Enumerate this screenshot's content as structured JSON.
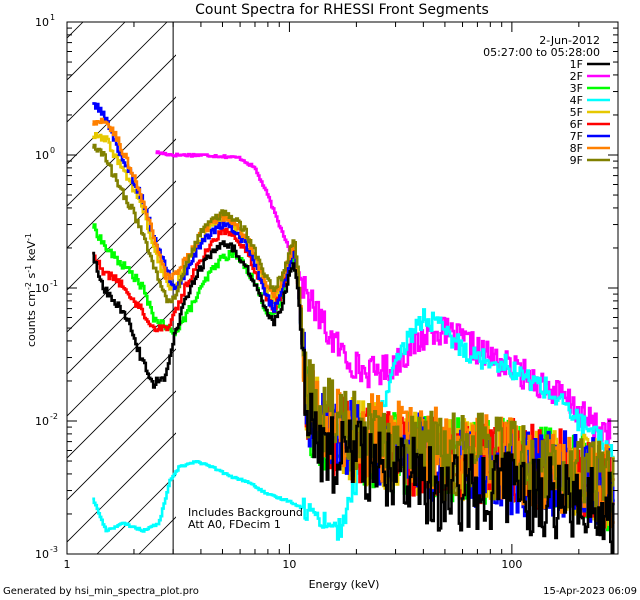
{
  "chart_data": {
    "type": "line",
    "title": "Count Spectra for RHESSI Front Segments",
    "xlabel": "Energy (keV)",
    "ylabel_parts": [
      "counts cm",
      "-2",
      " s",
      "-1",
      " keV",
      "-1"
    ],
    "x_scale": "log",
    "y_scale": "log",
    "xlim": [
      1,
      300
    ],
    "ylim": [
      0.001,
      10
    ],
    "x_ticks": [
      {
        "value": 1,
        "label": "1"
      },
      {
        "value": 10,
        "label": "10"
      },
      {
        "value": 100,
        "label": "100"
      }
    ],
    "y_ticks": [
      {
        "value": 10,
        "label": "10",
        "exp": "1"
      },
      {
        "value": 1,
        "label": "10",
        "exp": "0"
      },
      {
        "value": 0.1,
        "label": "10",
        "exp": "-1"
      },
      {
        "value": 0.01,
        "label": "10",
        "exp": "-2"
      },
      {
        "value": 0.001,
        "label": "10",
        "exp": "-3"
      }
    ],
    "shaded_region": {
      "x_from": 1,
      "x_to": 3,
      "style": "hatched"
    },
    "date_text": "2-Jun-2012",
    "time_range_text": "05:27:00 to 05:28:00",
    "legend_position": "top-right",
    "annotations": [
      "Includes Background",
      "Att A0, FDecim 1"
    ],
    "series": [
      {
        "name": "1F",
        "color": "#000000",
        "noise": 1.0,
        "points": [
          [
            1.3,
            0.19
          ],
          [
            1.45,
            0.1
          ],
          [
            1.65,
            0.08
          ],
          [
            1.9,
            0.055
          ],
          [
            2.15,
            0.03
          ],
          [
            2.45,
            0.019
          ],
          [
            2.8,
            0.022
          ],
          [
            3.0,
            0.04
          ],
          [
            3.4,
            0.08
          ],
          [
            3.9,
            0.13
          ],
          [
            4.4,
            0.18
          ],
          [
            5.0,
            0.22
          ],
          [
            5.6,
            0.2
          ],
          [
            6.3,
            0.15
          ],
          [
            7.0,
            0.11
          ],
          [
            7.8,
            0.07
          ],
          [
            8.5,
            0.055
          ],
          [
            9.2,
            0.07
          ],
          [
            10.0,
            0.12
          ],
          [
            10.5,
            0.16
          ],
          [
            11.0,
            0.09
          ],
          [
            12.0,
            0.01
          ],
          [
            15.0,
            0.006
          ],
          [
            20.0,
            0.005
          ],
          [
            30.0,
            0.004
          ],
          [
            50.0,
            0.003
          ],
          [
            100.0,
            0.003
          ],
          [
            200.0,
            0.0025
          ],
          [
            290.0,
            0.002
          ]
        ]
      },
      {
        "name": "2F",
        "color": "#ff00ff",
        "noise": 0.35,
        "points": [
          [
            2.5,
            1.05
          ],
          [
            3.0,
            1.0
          ],
          [
            4.0,
            1.0
          ],
          [
            5.0,
            0.98
          ],
          [
            6.0,
            0.95
          ],
          [
            7.0,
            0.8
          ],
          [
            8.0,
            0.5
          ],
          [
            9.0,
            0.3
          ],
          [
            10.0,
            0.2
          ],
          [
            11.0,
            0.13
          ],
          [
            12.0,
            0.09
          ],
          [
            15.0,
            0.045
          ],
          [
            18.0,
            0.03
          ],
          [
            22.0,
            0.023
          ],
          [
            28.0,
            0.025
          ],
          [
            35.0,
            0.035
          ],
          [
            45.0,
            0.05
          ],
          [
            60.0,
            0.04
          ],
          [
            80.0,
            0.03
          ],
          [
            100.0,
            0.025
          ],
          [
            130.0,
            0.02
          ],
          [
            170.0,
            0.015
          ],
          [
            220.0,
            0.01
          ],
          [
            280.0,
            0.008
          ]
        ]
      },
      {
        "name": "3F",
        "color": "#00ff00",
        "noise": 1.0,
        "points": [
          [
            1.3,
            0.3
          ],
          [
            1.5,
            0.2
          ],
          [
            1.7,
            0.16
          ],
          [
            1.95,
            0.13
          ],
          [
            2.2,
            0.1
          ],
          [
            2.45,
            0.06
          ],
          [
            2.8,
            0.05
          ],
          [
            3.0,
            0.045
          ],
          [
            3.4,
            0.06
          ],
          [
            3.9,
            0.09
          ],
          [
            4.4,
            0.13
          ],
          [
            5.0,
            0.17
          ],
          [
            5.6,
            0.18
          ],
          [
            6.3,
            0.15
          ],
          [
            7.0,
            0.11
          ],
          [
            7.8,
            0.07
          ],
          [
            8.5,
            0.06
          ],
          [
            9.2,
            0.08
          ],
          [
            10.0,
            0.14
          ],
          [
            10.5,
            0.19
          ],
          [
            11.0,
            0.1
          ],
          [
            12.0,
            0.012
          ],
          [
            15.0,
            0.008
          ],
          [
            20.0,
            0.007
          ],
          [
            30.0,
            0.006
          ],
          [
            50.0,
            0.005
          ],
          [
            100.0,
            0.005
          ],
          [
            200.0,
            0.004
          ],
          [
            290.0,
            0.003
          ]
        ]
      },
      {
        "name": "4F",
        "color": "#00ffff",
        "noise": 0.25,
        "points": [
          [
            1.3,
            0.0027
          ],
          [
            1.5,
            0.0015
          ],
          [
            1.8,
            0.0017
          ],
          [
            2.2,
            0.0015
          ],
          [
            2.6,
            0.0017
          ],
          [
            2.9,
            0.0035
          ],
          [
            3.2,
            0.0045
          ],
          [
            3.8,
            0.005
          ],
          [
            4.5,
            0.0045
          ],
          [
            5.5,
            0.0038
          ],
          [
            6.5,
            0.0035
          ],
          [
            8.0,
            0.0028
          ],
          [
            10.0,
            0.0025
          ],
          [
            13.0,
            0.002
          ],
          [
            17.0,
            0.0015
          ],
          [
            20.0,
            0.0035
          ],
          [
            25.0,
            0.01
          ],
          [
            30.0,
            0.025
          ],
          [
            35.0,
            0.045
          ],
          [
            40.0,
            0.06
          ],
          [
            45.0,
            0.055
          ],
          [
            55.0,
            0.04
          ],
          [
            70.0,
            0.03
          ],
          [
            90.0,
            0.028
          ],
          [
            110.0,
            0.022
          ],
          [
            140.0,
            0.018
          ],
          [
            180.0,
            0.012
          ],
          [
            230.0,
            0.008
          ],
          [
            290.0,
            0.006
          ]
        ]
      },
      {
        "name": "5F",
        "color": "#e6c800",
        "noise": 1.0,
        "points": [
          [
            1.3,
            1.4
          ],
          [
            1.5,
            1.3
          ],
          [
            1.7,
            0.9
          ],
          [
            1.95,
            0.6
          ],
          [
            2.2,
            0.4
          ],
          [
            2.45,
            0.2
          ],
          [
            2.8,
            0.11
          ],
          [
            3.0,
            0.1
          ],
          [
            3.4,
            0.14
          ],
          [
            3.9,
            0.22
          ],
          [
            4.4,
            0.28
          ],
          [
            5.0,
            0.32
          ],
          [
            5.6,
            0.3
          ],
          [
            6.3,
            0.24
          ],
          [
            7.0,
            0.17
          ],
          [
            7.8,
            0.1
          ],
          [
            8.5,
            0.08
          ],
          [
            9.2,
            0.1
          ],
          [
            10.0,
            0.16
          ],
          [
            10.5,
            0.22
          ],
          [
            11.0,
            0.11
          ],
          [
            12.0,
            0.014
          ],
          [
            15.0,
            0.009
          ],
          [
            20.0,
            0.007
          ],
          [
            30.0,
            0.006
          ],
          [
            50.0,
            0.005
          ],
          [
            100.0,
            0.005
          ],
          [
            200.0,
            0.004
          ],
          [
            290.0,
            0.003
          ]
        ]
      },
      {
        "name": "6F",
        "color": "#ff0000",
        "noise": 1.0,
        "points": [
          [
            1.3,
            0.19
          ],
          [
            1.45,
            0.13
          ],
          [
            1.65,
            0.12
          ],
          [
            1.9,
            0.09
          ],
          [
            2.15,
            0.07
          ],
          [
            2.45,
            0.05
          ],
          [
            2.8,
            0.05
          ],
          [
            3.0,
            0.06
          ],
          [
            3.4,
            0.1
          ],
          [
            3.9,
            0.15
          ],
          [
            4.4,
            0.21
          ],
          [
            5.0,
            0.27
          ],
          [
            5.6,
            0.26
          ],
          [
            6.3,
            0.2
          ],
          [
            7.0,
            0.14
          ],
          [
            7.8,
            0.09
          ],
          [
            8.5,
            0.07
          ],
          [
            9.2,
            0.09
          ],
          [
            10.0,
            0.15
          ],
          [
            10.5,
            0.2
          ],
          [
            11.0,
            0.1
          ],
          [
            12.0,
            0.013
          ],
          [
            15.0,
            0.008
          ],
          [
            20.0,
            0.007
          ],
          [
            30.0,
            0.006
          ],
          [
            50.0,
            0.005
          ],
          [
            100.0,
            0.005
          ],
          [
            200.0,
            0.004
          ],
          [
            290.0,
            0.003
          ]
        ]
      },
      {
        "name": "7F",
        "color": "#0000ff",
        "noise": 1.0,
        "points": [
          [
            1.3,
            2.5
          ],
          [
            1.5,
            1.9
          ],
          [
            1.7,
            1.1
          ],
          [
            1.95,
            0.7
          ],
          [
            2.2,
            0.45
          ],
          [
            2.45,
            0.25
          ],
          [
            2.8,
            0.14
          ],
          [
            3.0,
            0.1
          ],
          [
            3.4,
            0.12
          ],
          [
            3.9,
            0.2
          ],
          [
            4.4,
            0.26
          ],
          [
            5.0,
            0.3
          ],
          [
            5.6,
            0.28
          ],
          [
            6.3,
            0.22
          ],
          [
            7.0,
            0.15
          ],
          [
            7.8,
            0.09
          ],
          [
            8.5,
            0.07
          ],
          [
            9.2,
            0.09
          ],
          [
            10.0,
            0.15
          ],
          [
            10.5,
            0.2
          ],
          [
            11.0,
            0.1
          ],
          [
            12.0,
            0.012
          ],
          [
            15.0,
            0.008
          ],
          [
            20.0,
            0.007
          ],
          [
            30.0,
            0.006
          ],
          [
            50.0,
            0.005
          ],
          [
            100.0,
            0.004
          ],
          [
            200.0,
            0.004
          ],
          [
            290.0,
            0.003
          ]
        ]
      },
      {
        "name": "8F",
        "color": "#ff8000",
        "noise": 1.0,
        "points": [
          [
            1.3,
            1.7
          ],
          [
            1.5,
            1.8
          ],
          [
            1.7,
            1.3
          ],
          [
            1.95,
            0.75
          ],
          [
            2.2,
            0.45
          ],
          [
            2.45,
            0.25
          ],
          [
            2.8,
            0.12
          ],
          [
            3.0,
            0.12
          ],
          [
            3.4,
            0.16
          ],
          [
            3.9,
            0.24
          ],
          [
            4.4,
            0.3
          ],
          [
            5.0,
            0.34
          ],
          [
            5.6,
            0.32
          ],
          [
            6.3,
            0.25
          ],
          [
            7.0,
            0.18
          ],
          [
            7.8,
            0.11
          ],
          [
            8.5,
            0.09
          ],
          [
            9.2,
            0.11
          ],
          [
            10.0,
            0.17
          ],
          [
            10.5,
            0.23
          ],
          [
            11.0,
            0.12
          ],
          [
            12.0,
            0.015
          ],
          [
            15.0,
            0.01
          ],
          [
            20.0,
            0.008
          ],
          [
            30.0,
            0.007
          ],
          [
            50.0,
            0.006
          ],
          [
            100.0,
            0.005
          ],
          [
            200.0,
            0.004
          ],
          [
            290.0,
            0.003
          ]
        ]
      },
      {
        "name": "9F",
        "color": "#808000",
        "noise": 1.0,
        "points": [
          [
            1.3,
            1.15
          ],
          [
            1.5,
            0.95
          ],
          [
            1.7,
            0.6
          ],
          [
            1.95,
            0.4
          ],
          [
            2.2,
            0.25
          ],
          [
            2.45,
            0.15
          ],
          [
            2.8,
            0.08
          ],
          [
            3.0,
            0.08
          ],
          [
            3.4,
            0.14
          ],
          [
            3.9,
            0.24
          ],
          [
            4.4,
            0.32
          ],
          [
            5.0,
            0.36
          ],
          [
            5.6,
            0.34
          ],
          [
            6.3,
            0.27
          ],
          [
            7.0,
            0.19
          ],
          [
            7.8,
            0.12
          ],
          [
            8.5,
            0.1
          ],
          [
            9.2,
            0.12
          ],
          [
            10.0,
            0.18
          ],
          [
            10.5,
            0.24
          ],
          [
            11.0,
            0.12
          ],
          [
            12.0,
            0.015
          ],
          [
            15.0,
            0.01
          ],
          [
            20.0,
            0.008
          ],
          [
            30.0,
            0.007
          ],
          [
            50.0,
            0.006
          ],
          [
            100.0,
            0.005
          ],
          [
            200.0,
            0.004
          ],
          [
            290.0,
            0.003
          ]
        ]
      }
    ]
  },
  "footer": {
    "generated_by": "Generated by hsi_min_spectra_plot.pro",
    "timestamp": "15-Apr-2023 06:09"
  }
}
